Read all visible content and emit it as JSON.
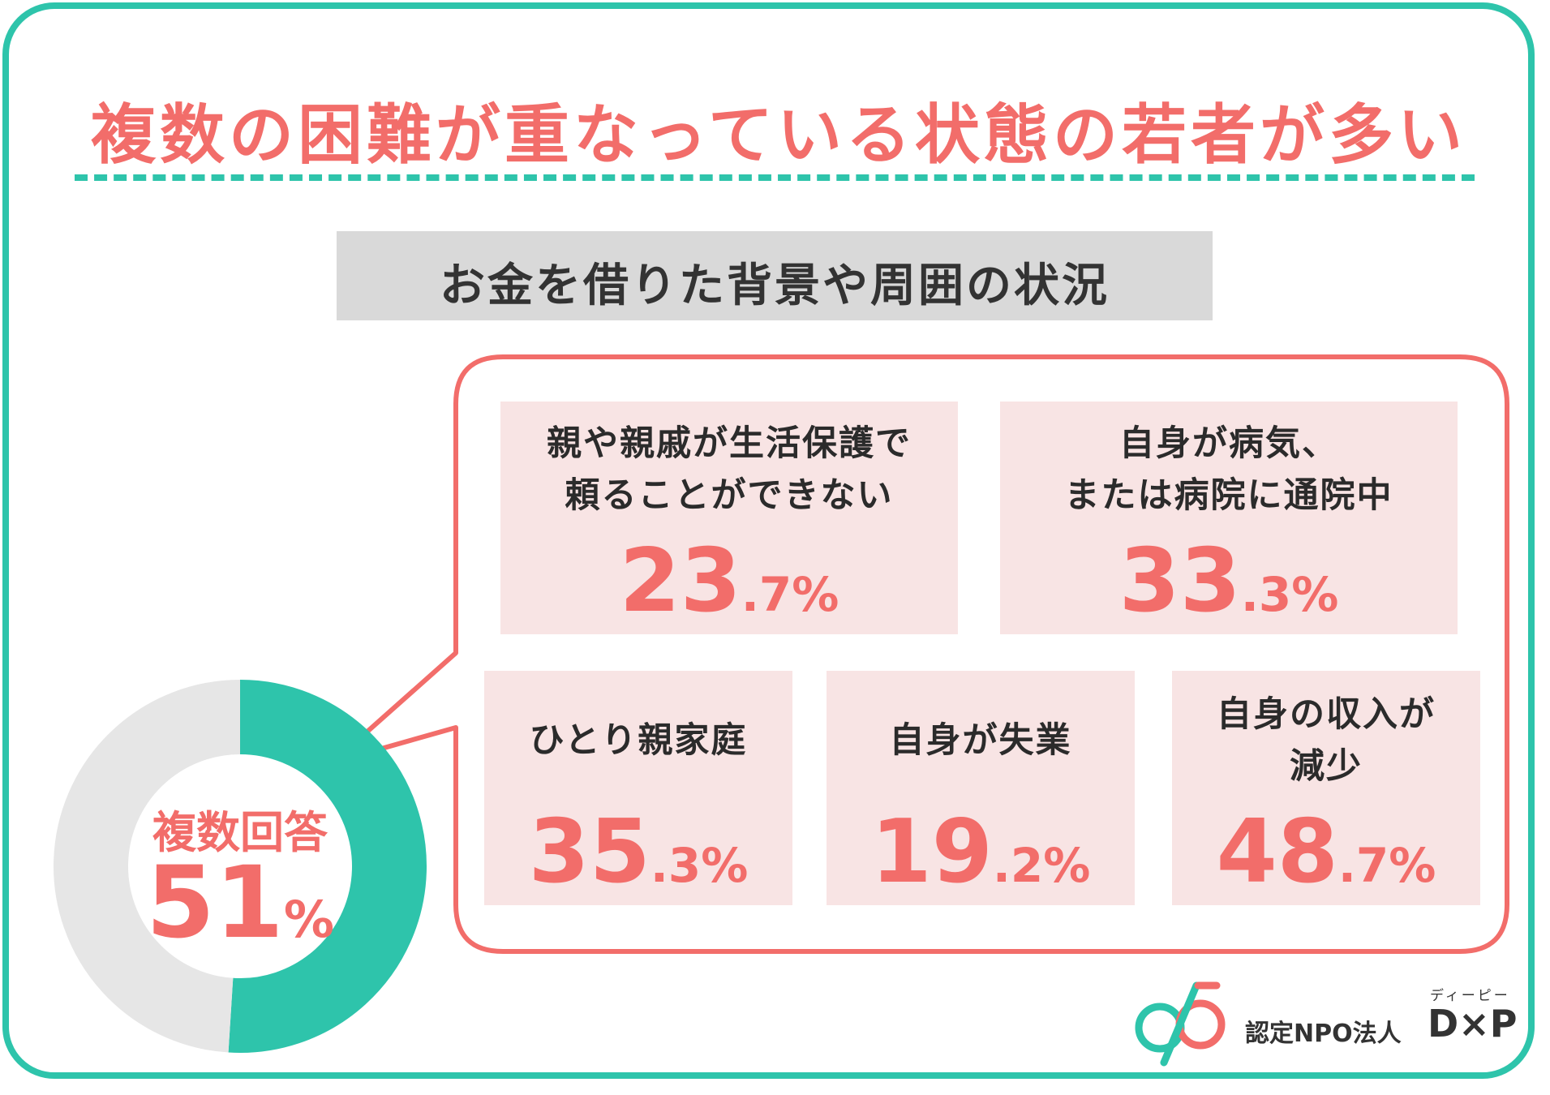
{
  "title": "複数の困難が重なっている状態の若者が多い",
  "subtitle": "お金を借りた背景や周囲の状況",
  "colors": {
    "accent_teal": "#2ec4ab",
    "accent_coral": "#f26d6a",
    "donut_rest": "#e6e6e6",
    "card_bg": "#f8e4e4",
    "subtitle_bg": "#d9d9d9"
  },
  "donut": {
    "label": "複数回答",
    "value_number": "51",
    "value_unit": "%"
  },
  "chart_data": [
    {
      "type": "pie",
      "title": "複数回答",
      "values": [
        51,
        49
      ],
      "colors": [
        "#2ec4ab",
        "#e6e6e6"
      ]
    },
    {
      "type": "table",
      "title": "お金を借りた背景や周囲の状況",
      "rows": [
        {
          "label_lines": [
            "親や親戚が生活保護で",
            "頼ることができない"
          ],
          "value": 23.7,
          "int": "23",
          "dec": ".7%"
        },
        {
          "label_lines": [
            "自身が病気、",
            "または病院に通院中"
          ],
          "value": 33.3,
          "int": "33",
          "dec": ".3%"
        },
        {
          "label_lines": [
            "ひとり親家庭"
          ],
          "value": 35.3,
          "int": "35",
          "dec": ".3%"
        },
        {
          "label_lines": [
            "自身が失業"
          ],
          "value": 19.2,
          "int": "19",
          "dec": ".2%"
        },
        {
          "label_lines": [
            "自身の収入が",
            "減少"
          ],
          "value": 48.7,
          "int": "48",
          "dec": ".7%"
        }
      ]
    }
  ],
  "logo": {
    "org_text": "認定NPO法人",
    "brand": "D×P",
    "ruby": "ディーピー",
    "icon": "dxp-logo-icon"
  }
}
